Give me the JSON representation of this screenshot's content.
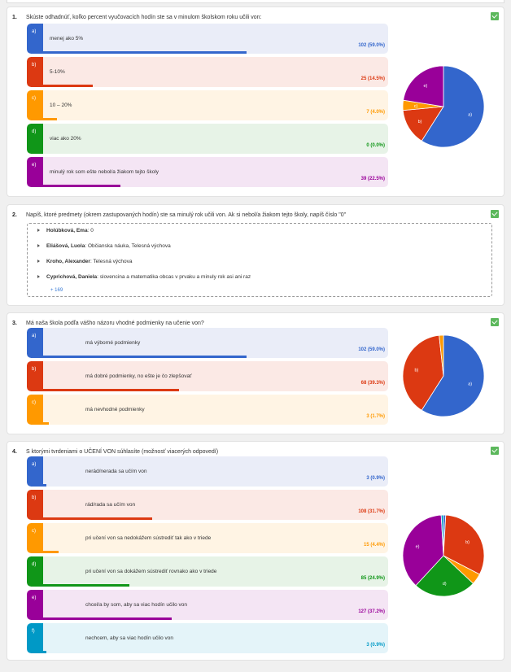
{
  "questions": [
    {
      "num": "1.",
      "text": "Skúste odhadnúť, koľko percent vyučovacích hodín ste sa v minulom školskom roku učili von:",
      "options": [
        {
          "letter": "a)",
          "text": "menej ako 5%",
          "count": "102 (59.0%)",
          "fraction": 0.59,
          "color": "#3366cc",
          "bg": "#eaedf8"
        },
        {
          "letter": "b)",
          "text": "5-10%",
          "count": "25 (14.5%)",
          "fraction": 0.145,
          "color": "#dc3912",
          "bg": "#fbe9e5"
        },
        {
          "letter": "c)",
          "text": "10 – 20%",
          "count": "7 (4.0%)",
          "fraction": 0.04,
          "color": "#ff9900",
          "bg": "#fff4e4"
        },
        {
          "letter": "d)",
          "text": "viac ako 20%",
          "count": "0 (0.0%)",
          "fraction": 0.0,
          "color": "#109618",
          "bg": "#e7f3e7"
        },
        {
          "letter": "e)",
          "text": "minulý rok som ešte nebol/a žiakom tejto školy",
          "count": "39 (22.5%)",
          "fraction": 0.225,
          "color": "#990099",
          "bg": "#f4e5f4"
        }
      ],
      "pie_labels": [
        "a)",
        "b)",
        "c)",
        "",
        "e)"
      ]
    },
    {
      "num": "2.",
      "text": "Napíš, ktoré predmety (okrem zastupovaných hodín) ste sa minulý rok učili von. Ak si nebol/a žiakom tejto školy, napíš číslo \"0\"",
      "answers": [
        {
          "name": "Holúbková, Ema",
          "value": ": 0"
        },
        {
          "name": "Eliášová, Luola",
          "value": ": Občianska náuka, Telesná výchova"
        },
        {
          "name": "Kroho, Alexander",
          "value": ": Telesná výchova"
        },
        {
          "name": "Cyprichová, Daniela",
          "value": ": slovencina a matematika obcas v prvaku a minuly rok asi ani raz"
        }
      ],
      "more": "+ 169"
    },
    {
      "num": "3.",
      "text": "Má naša škola podľa vášho názoru vhodné podmienky na učenie von?",
      "options": [
        {
          "letter": "a)",
          "text": "má výborné podmienky",
          "count": "102 (59.0%)",
          "fraction": 0.59,
          "color": "#3366cc",
          "bg": "#eaedf8"
        },
        {
          "letter": "b)",
          "text": "má dobré podmienky, no ešte je čo zlepšovať",
          "count": "68 (39.3%)",
          "fraction": 0.393,
          "color": "#dc3912",
          "bg": "#fbe9e5"
        },
        {
          "letter": "c)",
          "text": "má nevhodné podmienky",
          "count": "3 (1.7%)",
          "fraction": 0.017,
          "color": "#ff9900",
          "bg": "#fff4e4"
        }
      ],
      "pie_labels": [
        "a)",
        "b)",
        ""
      ]
    },
    {
      "num": "4.",
      "text": "S ktorými tvrdeniami o UČENÍ VON súhlasíte (možnosť viacerých odpovedí)",
      "options": [
        {
          "letter": "a)",
          "text": "nerád/nerada sa učím von",
          "count": "3 (0.9%)",
          "fraction": 0.009,
          "color": "#3366cc",
          "bg": "#eaedf8"
        },
        {
          "letter": "b)",
          "text": "rád/rada sa učím von",
          "count": "108 (31.7%)",
          "fraction": 0.317,
          "color": "#dc3912",
          "bg": "#fbe9e5"
        },
        {
          "letter": "c)",
          "text": "pri učení von sa nedokážem sústrediť tak ako v triede",
          "count": "15 (4.4%)",
          "fraction": 0.044,
          "color": "#ff9900",
          "bg": "#fff4e4"
        },
        {
          "letter": "d)",
          "text": "pri učení von sa dokážem sústrediť rovnako ako v triede",
          "count": "85 (24.9%)",
          "fraction": 0.249,
          "color": "#109618",
          "bg": "#e7f3e7"
        },
        {
          "letter": "e)",
          "text": "chcel/a by som, aby sa viac hodín učilo von",
          "count": "127 (37.2%)",
          "fraction": 0.372,
          "color": "#990099",
          "bg": "#f4e5f4"
        },
        {
          "letter": "f)",
          "text": "nechcem, aby sa viac hodín učilo von",
          "count": "3 (0.9%)",
          "fraction": 0.009,
          "color": "#0099c6",
          "bg": "#e4f4f9"
        }
      ],
      "pie_labels": [
        "",
        "b)",
        "",
        "d)",
        "e)",
        ""
      ]
    }
  ]
}
